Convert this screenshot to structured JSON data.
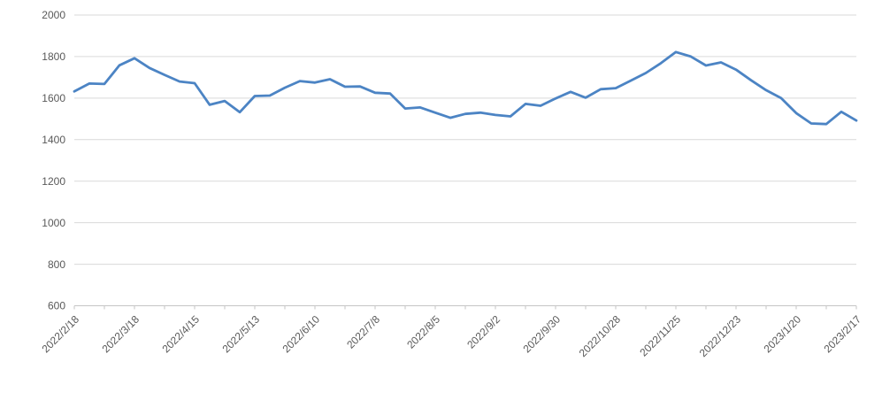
{
  "chart_data": {
    "type": "line",
    "title": "",
    "xlabel": "",
    "ylabel": "",
    "legend": "none",
    "grid": true,
    "ylim": [
      600,
      2000
    ],
    "ytick_step": 200,
    "yticks": [
      600,
      800,
      1000,
      1200,
      1400,
      1600,
      1800,
      2000
    ],
    "x_label_step": 4,
    "x_minor_tick_step": 2,
    "x": [
      "2022/2/18",
      "2022/2/25",
      "2022/3/4",
      "2022/3/11",
      "2022/3/18",
      "2022/3/25",
      "2022/4/1",
      "2022/4/8",
      "2022/4/15",
      "2022/4/22",
      "2022/4/29",
      "2022/5/6",
      "2022/5/13",
      "2022/5/20",
      "2022/5/27",
      "2022/6/3",
      "2022/6/10",
      "2022/6/17",
      "2022/6/24",
      "2022/7/1",
      "2022/7/8",
      "2022/7/15",
      "2022/7/22",
      "2022/7/29",
      "2022/8/5",
      "2022/8/12",
      "2022/8/19",
      "2022/8/26",
      "2022/9/2",
      "2022/9/9",
      "2022/9/16",
      "2022/9/23",
      "2022/9/30",
      "2022/10/7",
      "2022/10/14",
      "2022/10/21",
      "2022/10/28",
      "2022/11/4",
      "2022/11/11",
      "2022/11/18",
      "2022/11/25",
      "2022/12/2",
      "2022/12/9",
      "2022/12/16",
      "2022/12/23",
      "2022/12/30",
      "2023/1/6",
      "2023/1/13",
      "2023/1/20",
      "2023/1/27",
      "2023/2/3",
      "2023/2/10",
      "2023/2/17"
    ],
    "x_tick_labels": [
      "2022/2/18",
      "2022/3/18",
      "2022/4/15",
      "2022/5/13",
      "2022/6/10",
      "2022/7/8",
      "2022/8/5",
      "2022/9/2",
      "2022/9/30",
      "2022/10/28",
      "2022/11/25",
      "2022/12/23",
      "2023/1/20",
      "2023/2/17"
    ],
    "series": [
      {
        "name": "price",
        "values": [
          1632,
          1670,
          1668,
          1758,
          1792,
          1745,
          1712,
          1680,
          1672,
          1568,
          1586,
          1532,
          1610,
          1612,
          1650,
          1682,
          1675,
          1691,
          1655,
          1656,
          1626,
          1622,
          1550,
          1555,
          1530,
          1505,
          1524,
          1530,
          1519,
          1512,
          1572,
          1563,
          1598,
          1630,
          1602,
          1643,
          1648,
          1684,
          1721,
          1768,
          1822,
          1800,
          1757,
          1772,
          1737,
          1686,
          1638,
          1600,
          1528,
          1478,
          1475,
          1534,
          1492
        ]
      }
    ],
    "colors": {
      "series": "#4c84c4",
      "gridline": "#d9d9d9",
      "axis": "#c6c6c6",
      "tick": "#c6c6c6",
      "label": "#595959",
      "background": "#ffffff"
    },
    "layout": {
      "plot_left": 84,
      "plot_right": 968,
      "plot_top": 17,
      "plot_bottom": 345.5,
      "line_width": 2.8
    }
  }
}
